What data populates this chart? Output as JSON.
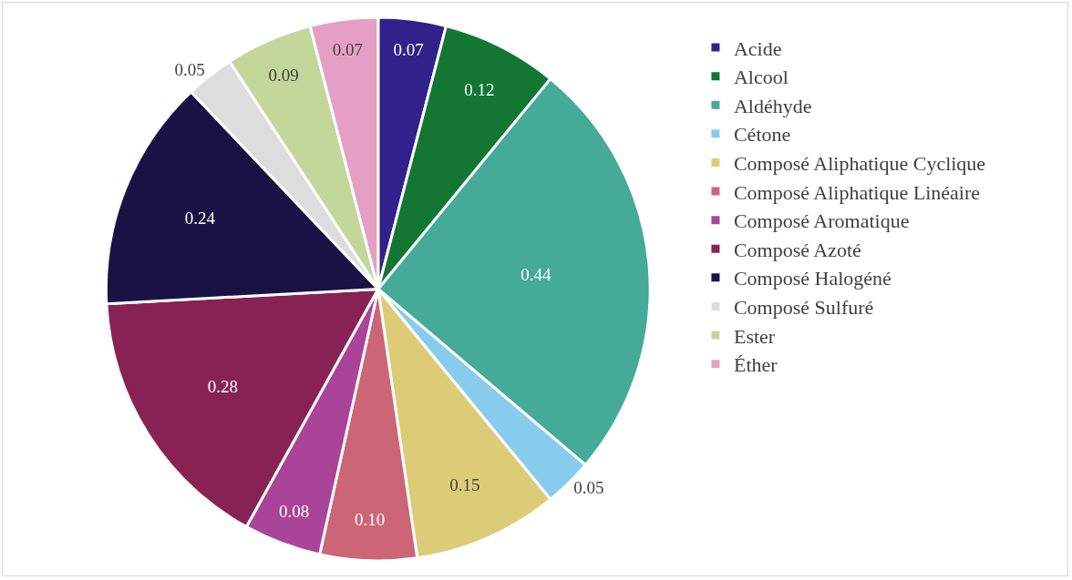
{
  "chart_data": {
    "type": "pie",
    "categories": [
      "Acide",
      "Alcool",
      "Aldéhyde",
      "Cétone",
      "Composé Aliphatique Cyclique",
      "Composé Aliphatique Linéaire",
      "Composé Aromatique",
      "Composé Azoté",
      "Composé Halogéné",
      "Composé Sulfuré",
      "Ester",
      "Éther"
    ],
    "values": [
      0.07,
      0.12,
      0.44,
      0.05,
      0.15,
      0.1,
      0.08,
      0.28,
      0.24,
      0.05,
      0.09,
      0.07
    ],
    "value_labels": [
      "0.07",
      "0.12",
      "0.44",
      "0.05",
      "0.15",
      "0.10",
      "0.08",
      "0.28",
      "0.24",
      "0.05",
      "0.09",
      "0.07"
    ],
    "colors": [
      "#32218a",
      "#137733",
      "#45aa98",
      "#88cced",
      "#ddcc77",
      "#cc6677",
      "#aa4499",
      "#882255",
      "#1a1244",
      "#dddddd",
      "#c4d79b",
      "#e69fc4"
    ],
    "legend": "right"
  }
}
